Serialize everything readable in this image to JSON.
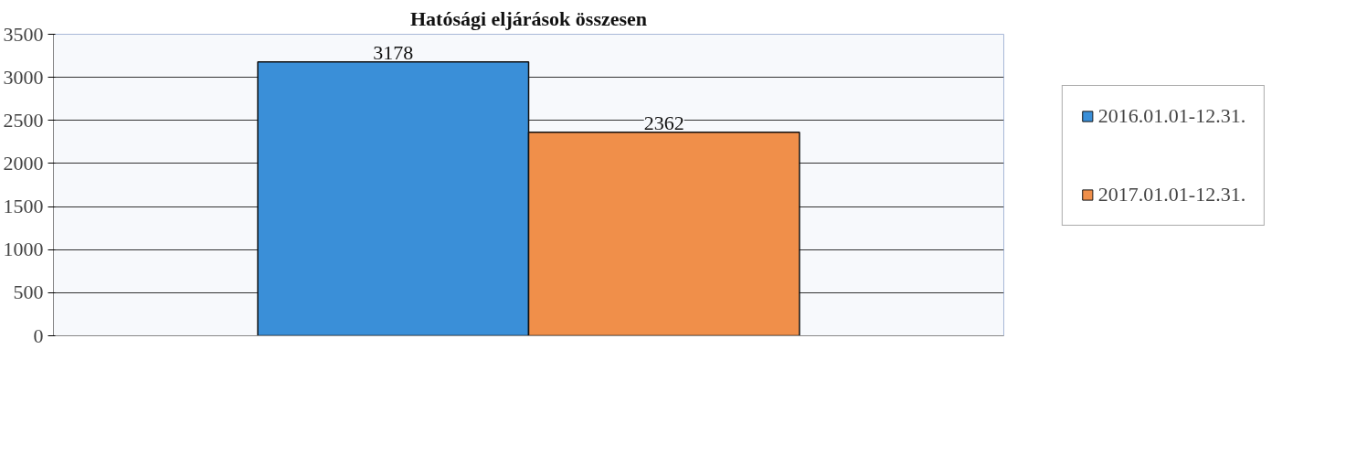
{
  "chart_data": {
    "type": "bar",
    "title": "Hatósági eljárások összesen",
    "categories": [
      null
    ],
    "series": [
      {
        "name": "2016.01.01-12.31.",
        "color": "#3a8fd8",
        "values": [
          3178
        ]
      },
      {
        "name": "2017.01.01-12.31.",
        "color": "#f08f4a",
        "values": [
          2362
        ]
      }
    ],
    "ylim": [
      0,
      3500
    ],
    "yticks": [
      0,
      500,
      1000,
      1500,
      2000,
      2500,
      3000,
      3500
    ],
    "grid": "y",
    "legend": "right",
    "data_labels": true,
    "tick_labels": "y"
  }
}
